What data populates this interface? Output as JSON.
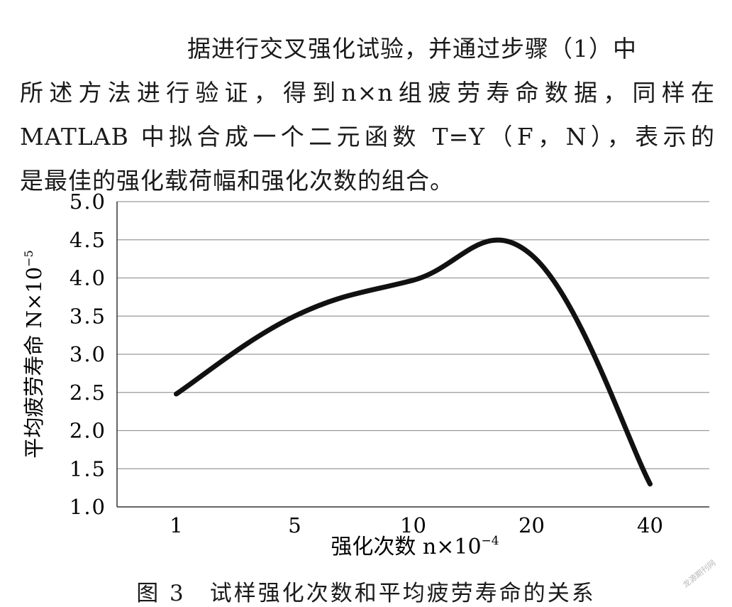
{
  "paragraph": {
    "lines": [
      "据进行交叉强化试验，并通过步骤（1）中",
      "所述方法进行验证，得到n×n组疲劳寿命数据，同样在",
      "MATLAB 中拟合成一个二元函数 T=Y（F，N），表示的",
      "是最佳的强化载荷幅和强化次数的组合。"
    ]
  },
  "chart_data": {
    "type": "line",
    "categories": [
      "1",
      "5",
      "10",
      "20",
      "40"
    ],
    "values": [
      2.48,
      3.5,
      3.97,
      4.3,
      1.3
    ],
    "xlabel": "强化次数 n×10",
    "xlabel_exp": "−4",
    "ylabel": "平均疲劳寿命 N×10",
    "ylabel_exp": "−5",
    "ylim": [
      1.0,
      5.0
    ],
    "ytick_labels": [
      "1.0",
      "1.5",
      "2.0",
      "2.5",
      "3.0",
      "3.5",
      "4.0",
      "4.5",
      "5.0"
    ],
    "grid": true,
    "line_color": "#111111"
  },
  "caption": "图 3　试样强化次数和平均疲劳寿命的关系",
  "watermark": "龙源期刊网"
}
